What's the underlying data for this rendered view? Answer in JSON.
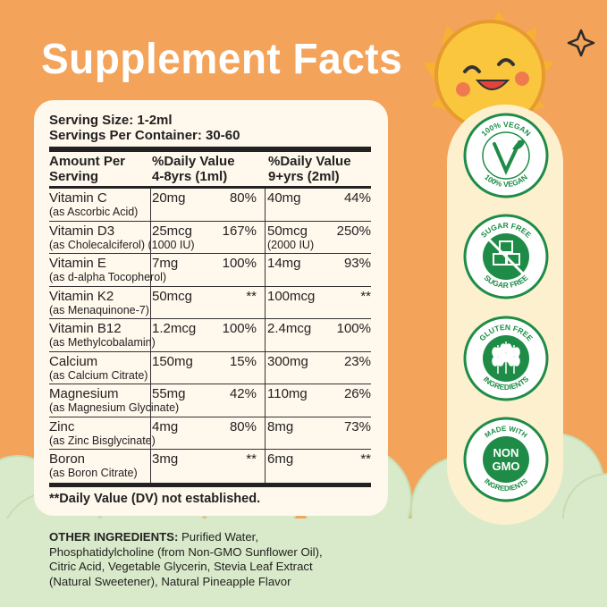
{
  "title": "Supplement Facts",
  "serving_size": "Serving Size: 1-2ml",
  "servings_per_container": "Servings Per Container: 30-60",
  "header": {
    "col1_line1": "Amount Per",
    "col1_line2": "Serving",
    "col2_line1": "%Daily Value",
    "col2_line2": "4-8yrs (1ml)",
    "col3_line1": "%Daily Value",
    "col3_line2": "9+yrs (2ml)"
  },
  "nutrients": [
    {
      "name": "Vitamin C",
      "source": "(as Ascorbic Acid)",
      "amount1": "20mg",
      "dv1": "80%",
      "amount2": "40mg",
      "dv2": "44%"
    },
    {
      "name": "Vitamin D3",
      "source": "(as Cholecalciferol) (1000 IU)",
      "amount1": "25mcg",
      "dv1": "167%",
      "amount2": "50mcg",
      "amount2_sub": "(2000 IU)",
      "dv2": "250%"
    },
    {
      "name": "Vitamin E",
      "source": "(as d-alpha Tocopherol)",
      "amount1": "7mg",
      "dv1": "100%",
      "amount2": "14mg",
      "dv2": "93%"
    },
    {
      "name": "Vitamin K2",
      "source": "(as Menaquinone-7)",
      "amount1": "50mcg",
      "dv1": "**",
      "amount2": "100mcg",
      "dv2": "**"
    },
    {
      "name": "Vitamin B12",
      "source": "(as Methylcobalamin)",
      "amount1": "1.2mcg",
      "dv1": "100%",
      "amount2": "2.4mcg",
      "dv2": "100%"
    },
    {
      "name": "Calcium",
      "source": "(as Calcium Citrate)",
      "amount1": "150mg",
      "dv1": "15%",
      "amount2": "300mg",
      "dv2": "23%"
    },
    {
      "name": "Magnesium",
      "source": "(as Magnesium Glycinate)",
      "amount1": "55mg",
      "dv1": "42%",
      "amount2": "110mg",
      "dv2": "26%"
    },
    {
      "name": "Zinc",
      "source": "(as Zinc Bisglycinate)",
      "amount1": "4mg",
      "dv1": "80%",
      "amount2": "8mg",
      "dv2": "73%"
    },
    {
      "name": "Boron",
      "source": "(as Boron Citrate)",
      "amount1": "3mg",
      "dv1": "**",
      "amount2": "6mg",
      "dv2": "**"
    }
  ],
  "footnote": "**Daily Value (DV) not established.",
  "other_ingredients": {
    "label": "OTHER INGREDIENTS:",
    "line1": " Purified Water,",
    "line2": "Phosphatidylcholine (from Non-GMO Sunflower Oil),",
    "line3": "Citric Acid, Vegetable Glycerin, Stevia Leaf Extract",
    "line4": "(Natural Sweetener), Natural Pineapple Flavor"
  },
  "badges": {
    "vegan_top": "100% VEGAN",
    "vegan_bottom": "100% VEGAN",
    "sugar_top": "SUGAR FREE",
    "sugar_bottom": "SUGAR FREE",
    "gluten_top": "GLUTEN FREE",
    "gluten_bottom": "INGREDIENTS",
    "gmo_top": "MADE WITH",
    "gmo_line1": "NON",
    "gmo_line2": "GMO",
    "gmo_bottom": "INGREDIENTS"
  },
  "colors": {
    "background": "#F4A35A",
    "cloud": "#D8EAC9",
    "panel": "#FFF8EC",
    "badge_green": "#1E8C47",
    "sun": "#F7C53D"
  }
}
